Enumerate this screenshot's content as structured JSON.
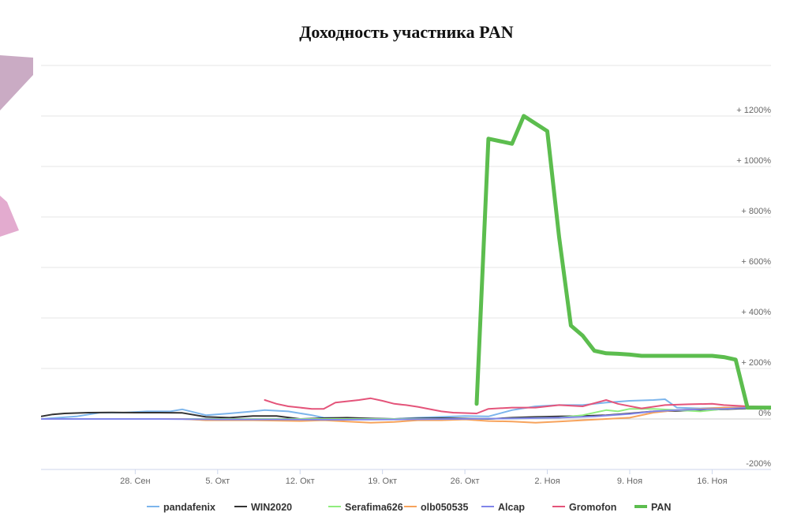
{
  "chart_data": {
    "type": "line",
    "title": "Доходность участника PAN",
    "xlabel": "",
    "ylabel": "",
    "x_start": "2020-09-20",
    "x_end": "2020-11-21",
    "ylim": [
      -200,
      1400
    ],
    "y_ticks": [
      {
        "value": -200,
        "label": "-200%"
      },
      {
        "value": 0,
        "label": "0%"
      },
      {
        "value": 200,
        "label": "+ 200%"
      },
      {
        "value": 400,
        "label": "+ 400%"
      },
      {
        "value": 600,
        "label": "+ 600%"
      },
      {
        "value": 800,
        "label": "+ 800%"
      },
      {
        "value": 1000,
        "label": "+ 1000%"
      },
      {
        "value": 1200,
        "label": "+ 1200%"
      }
    ],
    "x_ticks": [
      {
        "date": "2020-09-28",
        "label": "28. Сен"
      },
      {
        "date": "2020-10-05",
        "label": "5. Окт"
      },
      {
        "date": "2020-10-12",
        "label": "12. Окт"
      },
      {
        "date": "2020-10-19",
        "label": "19. Окт"
      },
      {
        "date": "2020-10-26",
        "label": "26. Окт"
      },
      {
        "date": "2020-11-02",
        "label": "2. Ноя"
      },
      {
        "date": "2020-11-09",
        "label": "9. Ноя"
      },
      {
        "date": "2020-11-16",
        "label": "16. Ноя"
      }
    ],
    "grid": true,
    "legend_position": "bottom",
    "series": [
      {
        "name": "pandafenix",
        "color": "#7cb5ec",
        "width": 2,
        "points": [
          [
            "2020-09-20",
            0
          ],
          [
            "2020-09-23",
            10
          ],
          [
            "2020-09-25",
            25
          ],
          [
            "2020-09-27",
            25
          ],
          [
            "2020-09-29",
            30
          ],
          [
            "2020-10-01",
            30
          ],
          [
            "2020-10-02",
            38
          ],
          [
            "2020-10-04",
            15
          ],
          [
            "2020-10-06",
            22
          ],
          [
            "2020-10-08",
            30
          ],
          [
            "2020-10-09",
            35
          ],
          [
            "2020-10-11",
            30
          ],
          [
            "2020-10-13",
            15
          ],
          [
            "2020-10-14",
            5
          ],
          [
            "2020-10-16",
            3
          ],
          [
            "2020-10-18",
            2
          ],
          [
            "2020-10-20",
            0
          ],
          [
            "2020-10-22",
            5
          ],
          [
            "2020-10-24",
            8
          ],
          [
            "2020-10-26",
            12
          ],
          [
            "2020-10-28",
            10
          ],
          [
            "2020-10-30",
            35
          ],
          [
            "2020-11-01",
            50
          ],
          [
            "2020-11-03",
            55
          ],
          [
            "2020-11-05",
            55
          ],
          [
            "2020-11-07",
            65
          ],
          [
            "2020-11-09",
            72
          ],
          [
            "2020-11-11",
            75
          ],
          [
            "2020-11-12",
            78
          ],
          [
            "2020-11-13",
            45
          ],
          [
            "2020-11-15",
            42
          ],
          [
            "2020-11-17",
            45
          ],
          [
            "2020-11-19",
            47
          ],
          [
            "2020-11-21",
            48
          ]
        ]
      },
      {
        "name": "WIN2020",
        "color": "#333333",
        "width": 2,
        "points": [
          [
            "2020-09-20",
            10
          ],
          [
            "2020-09-21",
            18
          ],
          [
            "2020-09-22",
            22
          ],
          [
            "2020-09-24",
            25
          ],
          [
            "2020-09-26",
            26
          ],
          [
            "2020-09-28",
            25
          ],
          [
            "2020-09-30",
            25
          ],
          [
            "2020-10-02",
            24
          ],
          [
            "2020-10-04",
            8
          ],
          [
            "2020-10-06",
            5
          ],
          [
            "2020-10-08",
            12
          ],
          [
            "2020-10-10",
            12
          ],
          [
            "2020-10-12",
            0
          ],
          [
            "2020-10-14",
            3
          ],
          [
            "2020-10-16",
            5
          ],
          [
            "2020-10-18",
            2
          ],
          [
            "2020-10-20",
            0
          ],
          [
            "2020-10-22",
            2
          ],
          [
            "2020-10-24",
            3
          ],
          [
            "2020-10-26",
            2
          ],
          [
            "2020-10-28",
            0
          ],
          [
            "2020-10-30",
            5
          ],
          [
            "2020-11-01",
            8
          ],
          [
            "2020-11-03",
            10
          ],
          [
            "2020-11-05",
            12
          ],
          [
            "2020-11-07",
            15
          ],
          [
            "2020-11-09",
            22
          ],
          [
            "2020-11-11",
            30
          ],
          [
            "2020-11-13",
            32
          ],
          [
            "2020-11-15",
            35
          ],
          [
            "2020-11-17",
            38
          ],
          [
            "2020-11-19",
            42
          ],
          [
            "2020-11-21",
            46
          ]
        ]
      },
      {
        "name": "Serafima626",
        "color": "#90ed7d",
        "width": 2,
        "points": [
          [
            "2020-09-20",
            0
          ],
          [
            "2020-09-25",
            0
          ],
          [
            "2020-09-30",
            0
          ],
          [
            "2020-10-05",
            0
          ],
          [
            "2020-10-10",
            0
          ],
          [
            "2020-10-15",
            0
          ],
          [
            "2020-10-20",
            0
          ],
          [
            "2020-10-25",
            0
          ],
          [
            "2020-10-30",
            2
          ],
          [
            "2020-11-03",
            5
          ],
          [
            "2020-11-05",
            15
          ],
          [
            "2020-11-07",
            35
          ],
          [
            "2020-11-08",
            30
          ],
          [
            "2020-11-09",
            40
          ],
          [
            "2020-11-11",
            40
          ],
          [
            "2020-11-13",
            35
          ],
          [
            "2020-11-15",
            30
          ],
          [
            "2020-11-17",
            40
          ],
          [
            "2020-11-19",
            45
          ],
          [
            "2020-11-21",
            45
          ]
        ]
      },
      {
        "name": "olb050535",
        "color": "#f7a35c",
        "width": 2,
        "points": [
          [
            "2020-09-20",
            0
          ],
          [
            "2020-10-02",
            0
          ],
          [
            "2020-10-04",
            -5
          ],
          [
            "2020-10-08",
            -5
          ],
          [
            "2020-10-12",
            -8
          ],
          [
            "2020-10-14",
            -5
          ],
          [
            "2020-10-16",
            -10
          ],
          [
            "2020-10-18",
            -15
          ],
          [
            "2020-10-20",
            -12
          ],
          [
            "2020-10-22",
            -5
          ],
          [
            "2020-10-24",
            -5
          ],
          [
            "2020-10-26",
            -2
          ],
          [
            "2020-10-28",
            -8
          ],
          [
            "2020-10-30",
            -10
          ],
          [
            "2020-11-01",
            -15
          ],
          [
            "2020-11-03",
            -10
          ],
          [
            "2020-11-05",
            -5
          ],
          [
            "2020-11-07",
            0
          ],
          [
            "2020-11-09",
            5
          ],
          [
            "2020-11-11",
            25
          ],
          [
            "2020-11-13",
            35
          ],
          [
            "2020-11-15",
            40
          ],
          [
            "2020-11-17",
            45
          ],
          [
            "2020-11-19",
            45
          ],
          [
            "2020-11-21",
            45
          ]
        ]
      },
      {
        "name": "Alcap",
        "color": "#8085e9",
        "width": 2,
        "points": [
          [
            "2020-09-20",
            0
          ],
          [
            "2020-09-25",
            0
          ],
          [
            "2020-09-30",
            0
          ],
          [
            "2020-10-05",
            -2
          ],
          [
            "2020-10-10",
            -2
          ],
          [
            "2020-10-15",
            -3
          ],
          [
            "2020-10-20",
            -2
          ],
          [
            "2020-10-25",
            0
          ],
          [
            "2020-10-30",
            2
          ],
          [
            "2020-11-03",
            5
          ],
          [
            "2020-11-06",
            10
          ],
          [
            "2020-11-09",
            20
          ],
          [
            "2020-11-11",
            30
          ],
          [
            "2020-11-13",
            35
          ],
          [
            "2020-11-15",
            38
          ],
          [
            "2020-11-17",
            40
          ],
          [
            "2020-11-19",
            44
          ],
          [
            "2020-11-21",
            46
          ]
        ]
      },
      {
        "name": "Gromofon",
        "color": "#e4547a",
        "width": 2,
        "points": [
          [
            "2020-10-09",
            75
          ],
          [
            "2020-10-10",
            60
          ],
          [
            "2020-10-11",
            50
          ],
          [
            "2020-10-13",
            40
          ],
          [
            "2020-10-14",
            40
          ],
          [
            "2020-10-15",
            65
          ],
          [
            "2020-10-16",
            70
          ],
          [
            "2020-10-17",
            75
          ],
          [
            "2020-10-18",
            82
          ],
          [
            "2020-10-19",
            72
          ],
          [
            "2020-10-20",
            60
          ],
          [
            "2020-10-21",
            55
          ],
          [
            "2020-10-22",
            48
          ],
          [
            "2020-10-24",
            30
          ],
          [
            "2020-10-25",
            25
          ],
          [
            "2020-10-27",
            22
          ],
          [
            "2020-10-28",
            40
          ],
          [
            "2020-10-30",
            45
          ],
          [
            "2020-11-01",
            45
          ],
          [
            "2020-11-02",
            50
          ],
          [
            "2020-11-03",
            55
          ],
          [
            "2020-11-05",
            50
          ],
          [
            "2020-11-07",
            75
          ],
          [
            "2020-11-08",
            60
          ],
          [
            "2020-11-10",
            42
          ],
          [
            "2020-11-12",
            55
          ],
          [
            "2020-11-14",
            58
          ],
          [
            "2020-11-16",
            60
          ],
          [
            "2020-11-17",
            55
          ],
          [
            "2020-11-19",
            50
          ],
          [
            "2020-11-21",
            48
          ]
        ]
      },
      {
        "name": "PAN",
        "color": "#5cbd4e",
        "width": 5,
        "points": [
          [
            "2020-10-27",
            60
          ],
          [
            "2020-10-28",
            1110
          ],
          [
            "2020-10-29",
            1100
          ],
          [
            "2020-10-30",
            1090
          ],
          [
            "2020-10-31",
            1200
          ],
          [
            "2020-11-01",
            1170
          ],
          [
            "2020-11-02",
            1140
          ],
          [
            "2020-11-03",
            720
          ],
          [
            "2020-11-04",
            370
          ],
          [
            "2020-11-05",
            330
          ],
          [
            "2020-11-06",
            270
          ],
          [
            "2020-11-07",
            260
          ],
          [
            "2020-11-08",
            258
          ],
          [
            "2020-11-09",
            255
          ],
          [
            "2020-11-10",
            250
          ],
          [
            "2020-11-11",
            250
          ],
          [
            "2020-11-12",
            250
          ],
          [
            "2020-11-13",
            250
          ],
          [
            "2020-11-14",
            250
          ],
          [
            "2020-11-15",
            250
          ],
          [
            "2020-11-16",
            250
          ],
          [
            "2020-11-17",
            245
          ],
          [
            "2020-11-18",
            235
          ],
          [
            "2020-11-19",
            45
          ],
          [
            "2020-11-20",
            45
          ],
          [
            "2020-11-21",
            45
          ]
        ]
      }
    ]
  }
}
